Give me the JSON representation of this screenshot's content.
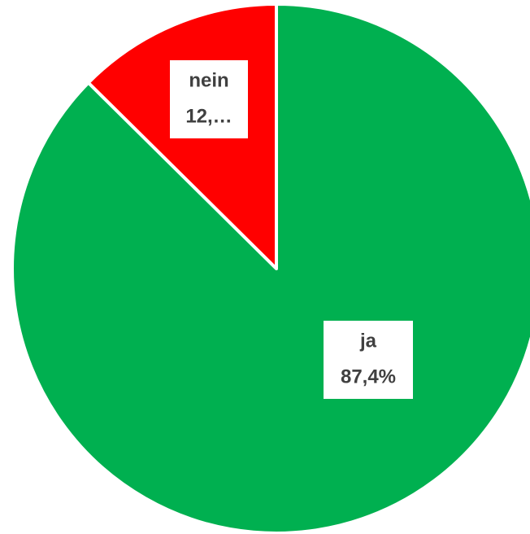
{
  "chart_data": {
    "type": "pie",
    "categories": [
      "ja",
      "nein"
    ],
    "values": [
      87.4,
      12.6
    ],
    "value_labels": [
      "87,4%",
      "12,…"
    ],
    "colors": [
      "#00b050",
      "#ff0000"
    ]
  }
}
